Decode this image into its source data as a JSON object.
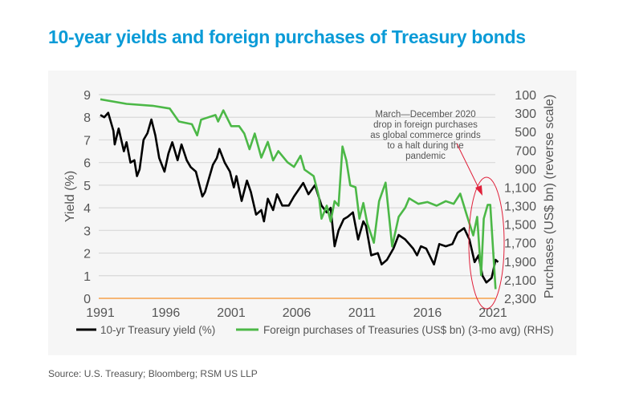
{
  "title": "10-year yields and foreign purchases of Treasury bonds",
  "source": "Source: U.S. Treasury; Bloomberg; RSM US LLP",
  "chart_data": {
    "type": "line",
    "title": "10-year yields and foreign purchases of Treasury bonds",
    "ylabel": "Yield (%)",
    "y2label": "Purchases (US$ bn) (reverse scale)",
    "ylim": [
      0,
      9
    ],
    "y2lim": [
      2300,
      100
    ],
    "y2_reversed": true,
    "xlim": [
      1991,
      2021.5
    ],
    "xticks": [
      "1991",
      "1996",
      "2001",
      "2006",
      "2011",
      "2016",
      "2021"
    ],
    "yticks": [
      "0",
      "1",
      "2",
      "3",
      "4",
      "5",
      "6",
      "7",
      "8",
      "9"
    ],
    "y2ticks": [
      "100",
      "300",
      "500",
      "700",
      "900",
      "1,100",
      "1,300",
      "1,500",
      "1,700",
      "1,900",
      "2,100",
      "2,300"
    ],
    "grid": true,
    "legend_placement": "bottom",
    "annotation": "March–December 2020 drop in foreign purchases as global commerce grinds to a halt during the pandemic",
    "annotation_lines": [
      "March—December 2020",
      "drop in foreign purchases",
      "as global commerce grinds",
      "to a halt during the",
      "pandemic"
    ],
    "series": [
      {
        "name": "10-yr Treasury yield (%)",
        "axis": "left",
        "color": "#000000",
        "x": [
          1991.0,
          1991.3,
          1991.6,
          1992.0,
          1992.1,
          1992.4,
          1992.8,
          1993.0,
          1993.3,
          1993.6,
          1993.8,
          1994.0,
          1994.3,
          1994.6,
          1994.9,
          1995.2,
          1995.5,
          1995.9,
          1996.2,
          1996.5,
          1996.9,
          1997.2,
          1997.6,
          1997.9,
          1998.3,
          1998.8,
          1999.0,
          1999.3,
          1999.6,
          1999.9,
          2000.1,
          2000.5,
          2000.9,
          2001.2,
          2001.4,
          2001.8,
          2002.2,
          2002.5,
          2002.9,
          2003.3,
          2003.5,
          2003.8,
          2004.2,
          2004.5,
          2004.9,
          2005.4,
          2005.8,
          2006.5,
          2006.9,
          2007.4,
          2007.9,
          2008.3,
          2008.6,
          2008.9,
          2009.2,
          2009.6,
          2009.9,
          2010.3,
          2010.7,
          2011.1,
          2011.3,
          2011.7,
          2012.2,
          2012.5,
          2012.9,
          2013.4,
          2013.8,
          2014.3,
          2014.9,
          2015.2,
          2015.5,
          2015.9,
          2016.5,
          2016.9,
          2017.4,
          2017.9,
          2018.3,
          2018.8,
          2019.2,
          2019.6,
          2019.9,
          2020.2,
          2020.5,
          2020.9,
          2021.2,
          2021.4
        ],
        "values": [
          8.1,
          8.0,
          8.2,
          7.4,
          6.8,
          7.5,
          6.5,
          6.9,
          6.0,
          6.1,
          5.4,
          5.7,
          7.0,
          7.3,
          7.9,
          7.2,
          6.2,
          5.6,
          6.4,
          6.9,
          6.1,
          6.8,
          6.1,
          5.8,
          5.6,
          4.5,
          4.7,
          5.3,
          5.9,
          6.2,
          6.6,
          6.0,
          5.6,
          4.9,
          5.4,
          4.3,
          5.2,
          4.7,
          3.7,
          3.9,
          3.4,
          4.4,
          3.9,
          4.6,
          4.1,
          4.1,
          4.5,
          5.1,
          4.6,
          5.0,
          4.1,
          3.8,
          4.0,
          2.3,
          3.0,
          3.5,
          3.6,
          3.8,
          2.6,
          3.4,
          3.2,
          1.9,
          2.0,
          1.5,
          1.7,
          2.2,
          2.8,
          2.6,
          2.2,
          1.9,
          2.3,
          2.2,
          1.5,
          2.4,
          2.3,
          2.4,
          2.9,
          3.1,
          2.6,
          1.6,
          1.9,
          1.0,
          0.7,
          0.9,
          1.7,
          1.6
        ]
      },
      {
        "name": "Foreign purchases of Treasuries (US$ bn) (3-mo avg) (RHS)",
        "axis": "right",
        "color": "#4cb847",
        "x": [
          1991.0,
          1993.0,
          1995.0,
          1996.3,
          1997.0,
          1998.0,
          1998.4,
          1998.7,
          1999.8,
          2000.0,
          2000.4,
          2001.0,
          2001.6,
          2002.0,
          2002.4,
          2002.8,
          2003.3,
          2003.8,
          2004.2,
          2004.6,
          2005.3,
          2005.8,
          2006.3,
          2006.6,
          2007.3,
          2007.7,
          2007.9,
          2008.3,
          2008.6,
          2008.9,
          2009.2,
          2009.5,
          2009.8,
          2010.1,
          2010.5,
          2010.8,
          2011.1,
          2011.4,
          2011.9,
          2012.3,
          2012.8,
          2013.3,
          2013.8,
          2014.3,
          2014.6,
          2015.3,
          2016.0,
          2016.7,
          2017.4,
          2018.0,
          2018.5,
          2019.0,
          2019.5,
          2019.8,
          2020.1,
          2020.3,
          2020.6,
          2020.8,
          2021.2
        ],
        "values": [
          150,
          200,
          220,
          250,
          390,
          420,
          540,
          370,
          320,
          390,
          270,
          440,
          440,
          520,
          690,
          520,
          780,
          610,
          810,
          710,
          830,
          880,
          760,
          910,
          980,
          1200,
          1440,
          1300,
          1470,
          1250,
          1300,
          660,
          810,
          1080,
          1100,
          1440,
          1270,
          1490,
          1700,
          1250,
          1050,
          1740,
          1420,
          1320,
          1220,
          1280,
          1260,
          1300,
          1250,
          1280,
          1170,
          1400,
          1620,
          1420,
          2050,
          1440,
          1290,
          1290,
          2200
        ]
      }
    ]
  }
}
